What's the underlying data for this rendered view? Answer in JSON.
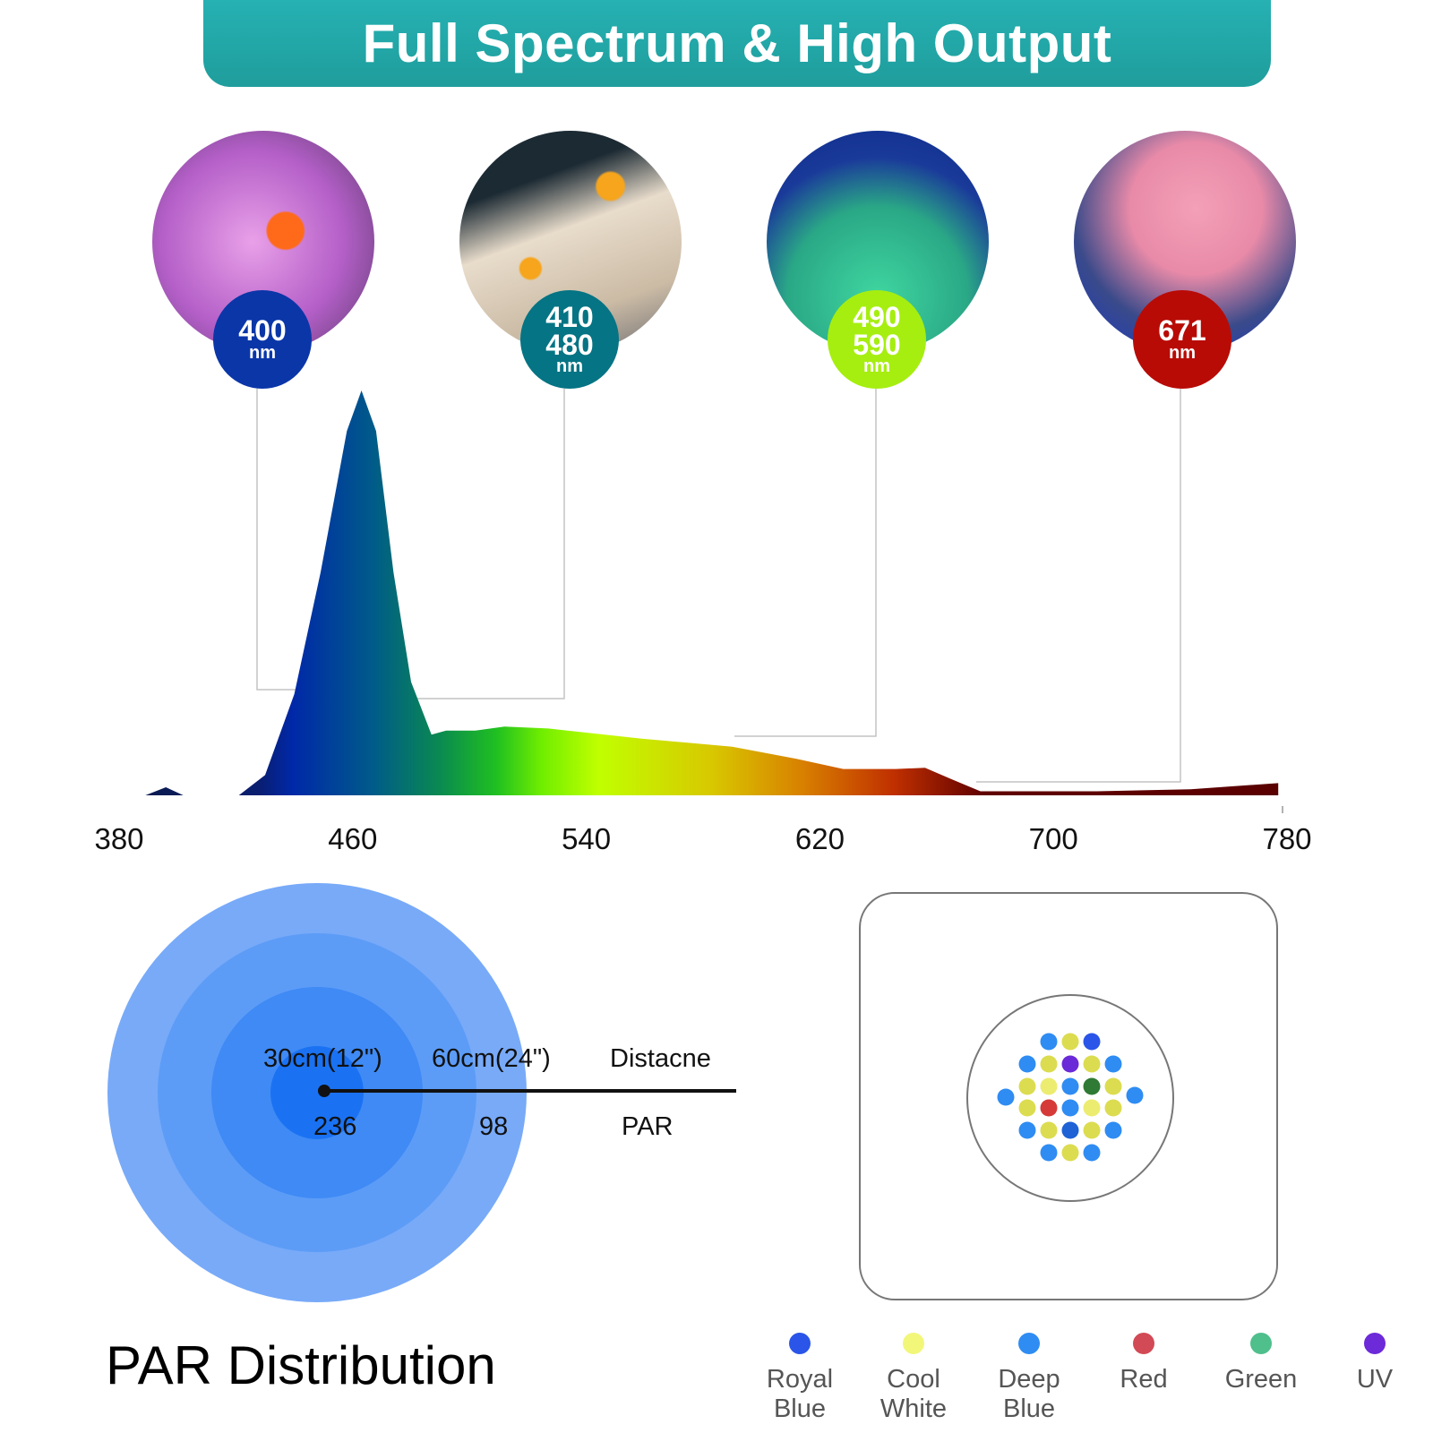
{
  "banner": {
    "title": "Full Spectrum & High Output",
    "color": "#22a8a8"
  },
  "badges": [
    {
      "lines": [
        "400"
      ],
      "unit": "nm",
      "color": "#0a36a8"
    },
    {
      "lines": [
        "410",
        "480"
      ],
      "unit": "nm",
      "color": "#057484"
    },
    {
      "lines": [
        "490",
        "590"
      ],
      "unit": "nm",
      "color": "#a6ee10"
    },
    {
      "lines": [
        "671"
      ],
      "unit": "nm",
      "color": "#b80b06"
    }
  ],
  "chart_data": {
    "type": "area",
    "xlabel": "",
    "ylabel": "",
    "xlim": [
      380,
      780
    ],
    "x_ticks": [
      "380",
      "460",
      "540",
      "620",
      "700",
      "780"
    ],
    "grid": false,
    "points": [
      [
        389,
        0
      ],
      [
        396,
        0.02
      ],
      [
        402,
        0
      ],
      [
        421,
        0
      ],
      [
        430,
        0.05
      ],
      [
        440,
        0.25
      ],
      [
        449,
        0.55
      ],
      [
        458,
        0.9
      ],
      [
        463,
        1.0
      ],
      [
        468,
        0.9
      ],
      [
        474,
        0.55
      ],
      [
        480,
        0.28
      ],
      [
        487,
        0.15
      ],
      [
        492,
        0.16
      ],
      [
        496,
        0.16
      ],
      [
        502,
        0.16
      ],
      [
        512,
        0.17
      ],
      [
        527,
        0.165
      ],
      [
        559,
        0.14
      ],
      [
        590,
        0.12
      ],
      [
        612,
        0.09
      ],
      [
        628,
        0.065
      ],
      [
        646,
        0.065
      ],
      [
        656,
        0.068
      ],
      [
        665,
        0.04
      ],
      [
        675,
        0.01
      ],
      [
        715,
        0.01
      ],
      [
        747,
        0.015
      ],
      [
        777,
        0.03
      ]
    ]
  },
  "par": {
    "distance_1": "30cm(12\")",
    "distance_2": "60cm(24\")",
    "distance_label": "Distacne",
    "par_1": "236",
    "par_2": "98",
    "par_label": "PAR",
    "title": "PAR Distribution",
    "ring_colors": [
      "#78aaf8",
      "#5c9cf7",
      "#3f8af5",
      "#1a72f3"
    ]
  },
  "led_colors": {
    "RB": "#2a55e8",
    "CW": "#dcdc50",
    "LW": "#ecec70",
    "DB": "#2f8cf2",
    "R": "#d53a38",
    "G": "#2f7a34",
    "UV": "#6a2ad8",
    "DR": "#1e62d6"
  },
  "led_rows": [
    [
      "DB",
      "CW",
      "RB"
    ],
    [
      "DB",
      "CW",
      "UV",
      "CW",
      "DB"
    ],
    [
      "CW",
      "LW",
      "DB",
      "G",
      "CW"
    ],
    [
      "CW",
      "R",
      "DB",
      "LW",
      "CW"
    ],
    [
      "DB",
      "CW",
      "DR",
      "CW",
      "DB"
    ],
    [
      "DB",
      "CW",
      "DB"
    ]
  ],
  "legend": [
    {
      "label": [
        "Royal",
        "Blue"
      ],
      "color": "#2a55e8"
    },
    {
      "label": [
        "Cool",
        "White"
      ],
      "color": "#f2f77a"
    },
    {
      "label": [
        "Deep",
        "Blue"
      ],
      "color": "#2f8cf2"
    },
    {
      "label": [
        "Red"
      ],
      "color": "#d24a55"
    },
    {
      "label": [
        "Green"
      ],
      "color": "#4fbf8c"
    },
    {
      "label": [
        "UV"
      ],
      "color": "#6c2ad8"
    }
  ]
}
